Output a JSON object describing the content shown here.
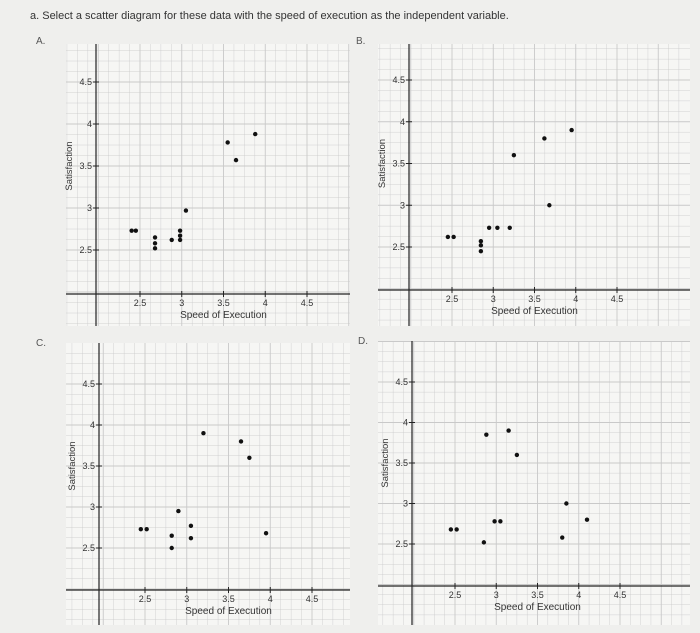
{
  "question": "a. Select a scatter diagram for these data with the speed of execution as the independent variable.",
  "accent_color": "#111111",
  "grid_color": "#c9c9c9",
  "chart_data": [
    {
      "letter": "A.",
      "type": "scatter",
      "xlabel": "Speed   of   Execution",
      "ylabel": "Satisfaction",
      "xticks": [
        "2.5",
        "3",
        "3.5",
        "4",
        "4.5"
      ],
      "yticks": [
        "2.5",
        "3",
        "3.5",
        "4",
        "4.5"
      ],
      "xlim": [
        2,
        5
      ],
      "ylim": [
        2,
        4.75
      ],
      "points": [
        [
          2.4,
          2.73
        ],
        [
          2.45,
          2.73
        ],
        [
          2.68,
          2.65
        ],
        [
          2.68,
          2.58
        ],
        [
          2.68,
          2.52
        ],
        [
          2.88,
          2.62
        ],
        [
          2.98,
          2.73
        ],
        [
          2.98,
          2.67
        ],
        [
          2.98,
          2.62
        ],
        [
          3.05,
          2.97
        ],
        [
          3.55,
          3.78
        ],
        [
          3.65,
          3.57
        ],
        [
          3.88,
          3.88
        ]
      ]
    },
    {
      "letter": "B.",
      "type": "scatter",
      "xlabel": "Speed   of   Execution",
      "ylabel": "Satisfaction",
      "xticks": [
        "2.5",
        "3",
        "3.5",
        "4",
        "4.5"
      ],
      "yticks": [
        "2.5",
        "3",
        "3.5",
        "4",
        "4.5"
      ],
      "xlim": [
        2,
        5
      ],
      "ylim": [
        2,
        4.75
      ],
      "points": [
        [
          2.45,
          2.62
        ],
        [
          2.52,
          2.62
        ],
        [
          2.85,
          2.57
        ],
        [
          2.85,
          2.52
        ],
        [
          2.85,
          2.45
        ],
        [
          2.95,
          2.73
        ],
        [
          3.05,
          2.73
        ],
        [
          3.2,
          2.73
        ],
        [
          3.25,
          3.6
        ],
        [
          3.62,
          3.8
        ],
        [
          3.68,
          3.0
        ],
        [
          3.95,
          3.9
        ]
      ]
    },
    {
      "letter": "C.",
      "type": "scatter",
      "xlabel": "Speed   of   Execution",
      "ylabel": "Satisfaction",
      "xticks": [
        "2.5",
        "3",
        "3.5",
        "4",
        "4.5"
      ],
      "yticks": [
        "2.5",
        "3",
        "3.5",
        "4",
        "4.5"
      ],
      "xlim": [
        2,
        5
      ],
      "ylim": [
        2,
        4.75
      ],
      "points": [
        [
          2.45,
          2.73
        ],
        [
          2.52,
          2.73
        ],
        [
          2.82,
          2.65
        ],
        [
          2.82,
          2.5
        ],
        [
          2.9,
          2.95
        ],
        [
          3.05,
          2.77
        ],
        [
          3.05,
          2.62
        ],
        [
          3.2,
          3.9
        ],
        [
          3.65,
          3.8
        ],
        [
          3.75,
          3.6
        ],
        [
          3.95,
          2.68
        ]
      ]
    },
    {
      "letter": "D.",
      "type": "scatter",
      "xlabel": "Speed   of   Execution",
      "ylabel": "Satisfaction",
      "xticks": [
        "2.5",
        "3",
        "3.5",
        "4",
        "4.5"
      ],
      "yticks": [
        "2.5",
        "3",
        "3.5",
        "4",
        "4.5"
      ],
      "xlim": [
        2,
        5
      ],
      "ylim": [
        2,
        4.75
      ],
      "points": [
        [
          2.45,
          2.68
        ],
        [
          2.52,
          2.68
        ],
        [
          2.85,
          2.52
        ],
        [
          2.88,
          3.85
        ],
        [
          2.98,
          2.78
        ],
        [
          3.05,
          2.78
        ],
        [
          3.15,
          3.9
        ],
        [
          3.25,
          3.6
        ],
        [
          3.8,
          2.58
        ],
        [
          3.85,
          3.0
        ],
        [
          4.1,
          2.8
        ]
      ]
    }
  ]
}
